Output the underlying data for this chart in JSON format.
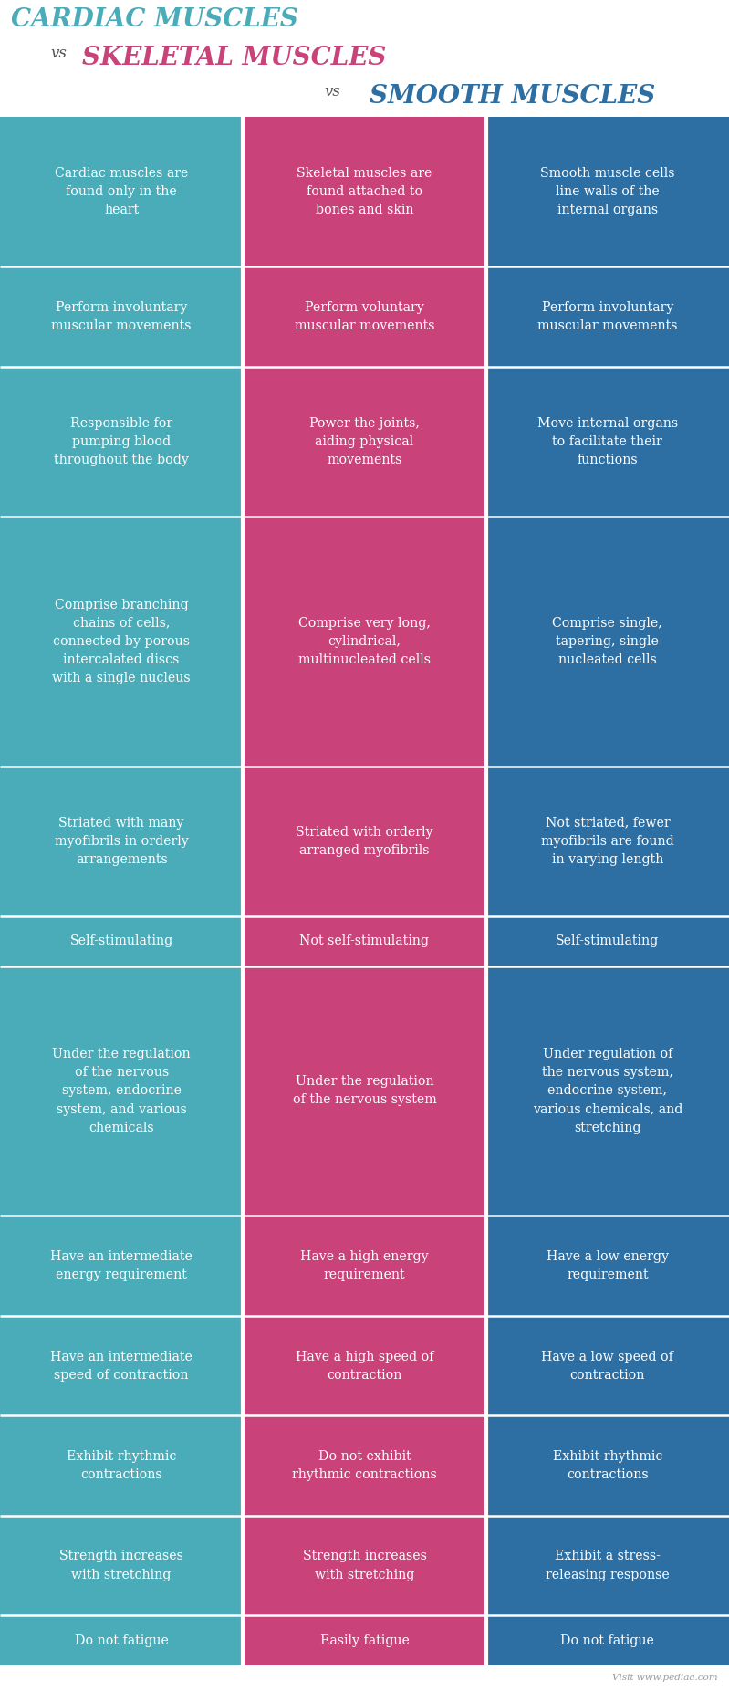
{
  "title_line1": "CARDIAC MUSCLES",
  "title_line2": "vs",
  "title_line3": "SKELETAL MUSCLES",
  "title_line4": "vs",
  "title_line5": "SMOOTH MUSCLES",
  "title_color1": "#4aacb8",
  "title_color3": "#c9437a",
  "title_color5": "#2e6fa3",
  "title_vs_color": "#555555",
  "col1_color": "#4aacb8",
  "col2_color": "#c9437a",
  "col3_color": "#2e6fa3",
  "text_color": "#ffffff",
  "bg_color": "#ffffff",
  "footer_text": "Visit www.pediaa.com",
  "rows": [
    [
      "Cardiac muscles are\nfound only in the\nheart",
      "Skeletal muscles are\nfound attached to\nbones and skin",
      "Smooth muscle cells\nline walls of the\ninternal organs"
    ],
    [
      "Perform involuntary\nmuscular movements",
      "Perform voluntary\nmuscular movements",
      "Perform involuntary\nmuscular movements"
    ],
    [
      "Responsible for\npumping blood\nthroughout the body",
      "Power the joints,\naiding physical\nmovements",
      "Move internal organs\nto facilitate their\nfunctions"
    ],
    [
      "Comprise branching\nchains of cells,\nconnected by porous\nintercalated discs\nwith a single nucleus",
      "Comprise very long,\ncylindrical,\nmultinucleated cells",
      "Comprise single,\ntapering, single\nnucleated cells"
    ],
    [
      "Striated with many\nmyofibrils in orderly\narrangements",
      "Striated with orderly\narranged myofibrils",
      "Not striated, fewer\nmyofibrils are found\nin varying length"
    ],
    [
      "Self-stimulating",
      "Not self-stimulating",
      "Self-stimulating"
    ],
    [
      "Under the regulation\nof the nervous\nsystem, endocrine\nsystem, and various\nchemicals",
      "Under the regulation\nof the nervous system",
      "Under regulation of\nthe nervous system,\nendocrine system,\nvarious chemicals, and\nstretching"
    ],
    [
      "Have an intermediate\nenergy requirement",
      "Have a high energy\nrequirement",
      "Have a low energy\nrequirement"
    ],
    [
      "Have an intermediate\nspeed of contraction",
      "Have a high speed of\ncontraction",
      "Have a low speed of\ncontraction"
    ],
    [
      "Exhibit rhythmic\ncontractions",
      "Do not exhibit\nrhythmic contractions",
      "Exhibit rhythmic\ncontractions"
    ],
    [
      "Strength increases\nwith stretching",
      "Strength increases\nwith stretching",
      "Exhibit a stress-\nreleasing response"
    ],
    [
      "Do not fatigue",
      "Easily fatigue",
      "Do not fatigue"
    ]
  ],
  "row_line_counts": [
    3,
    2,
    3,
    5,
    3,
    1,
    5,
    2,
    2,
    2,
    2,
    1
  ]
}
